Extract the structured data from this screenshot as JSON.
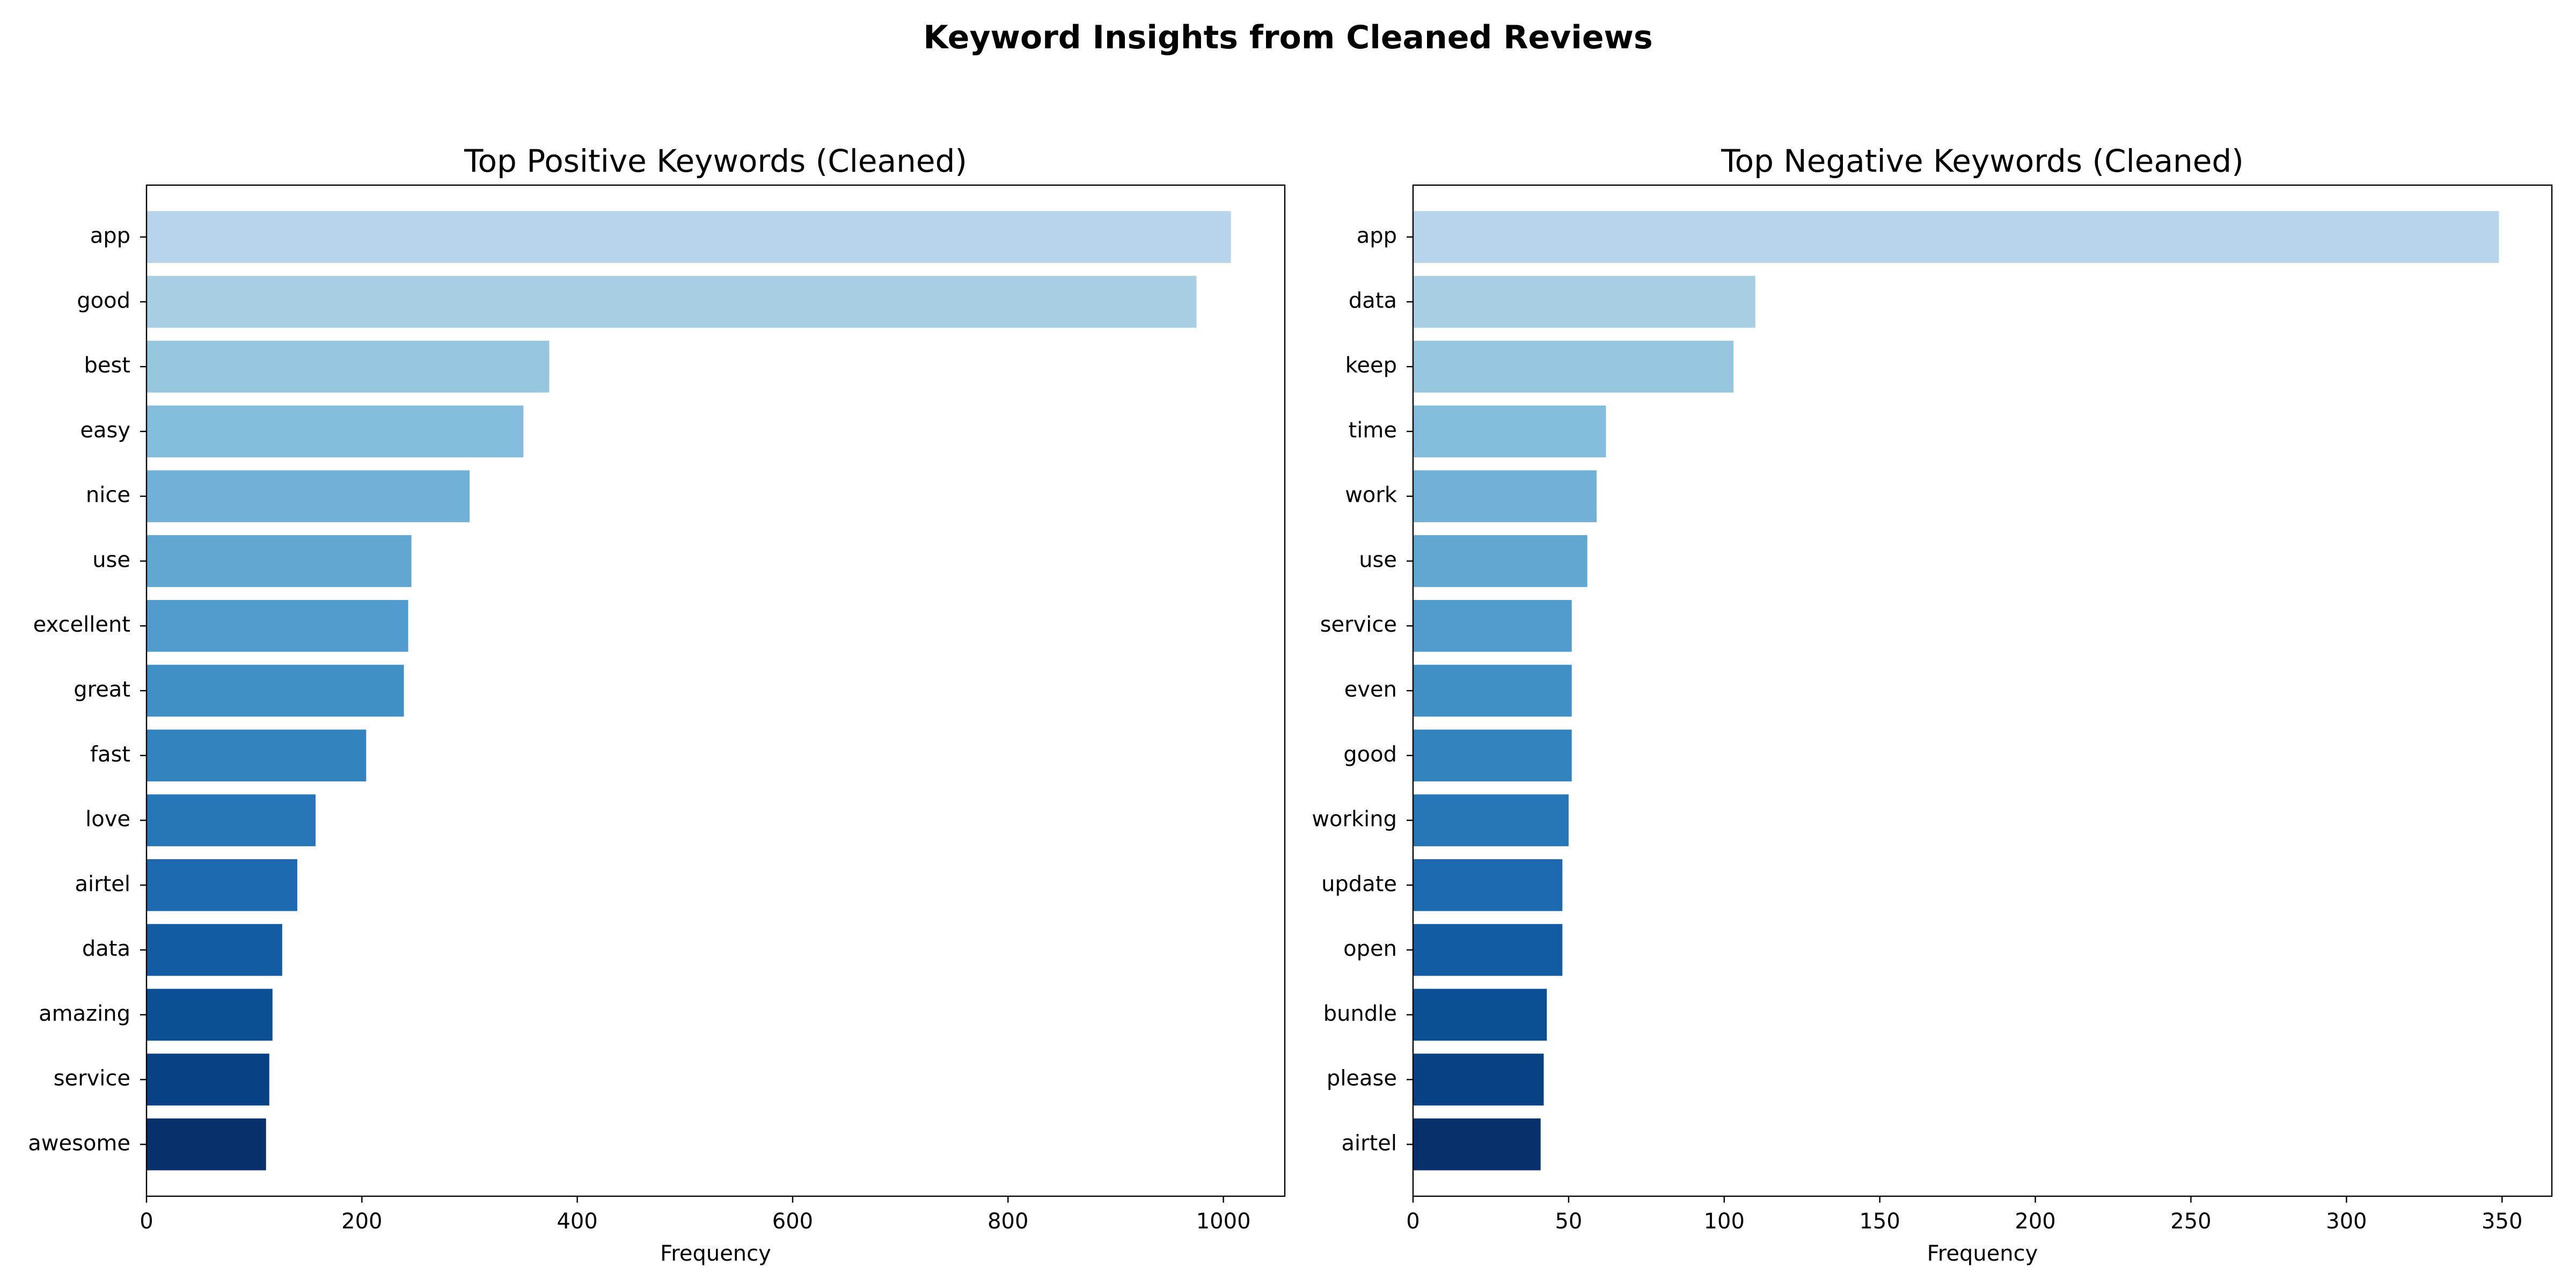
{
  "figure_title": "Keyword Insights from Cleaned Reviews",
  "chart_data": [
    {
      "type": "bar",
      "orientation": "horizontal",
      "title": "Top Positive Keywords (Cleaned)",
      "xlabel": "Frequency",
      "ylabel": "",
      "categories": [
        "app",
        "good",
        "best",
        "easy",
        "nice",
        "use",
        "excellent",
        "great",
        "fast",
        "love",
        "airtel",
        "data",
        "amazing",
        "service",
        "awesome"
      ],
      "values": [
        1007,
        975,
        374,
        350,
        300,
        246,
        243,
        239,
        204,
        157,
        140,
        126,
        117,
        114,
        111
      ],
      "xlim": [
        0,
        1057
      ],
      "xticks": [
        0,
        200,
        400,
        600,
        800,
        1000
      ],
      "grid": false,
      "colormap": "Blues",
      "colors": [
        "#b7d4ea",
        "#a8cee4",
        "#97c6df",
        "#84bcdb",
        "#71b1d7",
        "#60a7d2",
        "#519ccc",
        "#4090c5",
        "#3383be",
        "#2676b8",
        "#1c69af",
        "#135ca4",
        "#0b4f94",
        "#084285",
        "#08306b"
      ]
    },
    {
      "type": "bar",
      "orientation": "horizontal",
      "title": "Top Negative Keywords (Cleaned)",
      "xlabel": "Frequency",
      "ylabel": "",
      "categories": [
        "app",
        "data",
        "keep",
        "time",
        "work",
        "use",
        "service",
        "even",
        "good",
        "working",
        "update",
        "open",
        "bundle",
        "please",
        "airtel"
      ],
      "values": [
        349,
        110,
        103,
        62,
        59,
        56,
        51,
        51,
        51,
        50,
        48,
        48,
        43,
        42,
        41
      ],
      "xlim": [
        0,
        366
      ],
      "xticks": [
        0,
        50,
        100,
        150,
        200,
        250,
        300,
        350
      ],
      "grid": false,
      "colormap": "Blues",
      "colors": [
        "#b7d4ea",
        "#a8cee4",
        "#97c6df",
        "#84bcdb",
        "#71b1d7",
        "#60a7d2",
        "#519ccc",
        "#4090c5",
        "#3383be",
        "#2676b8",
        "#1c69af",
        "#135ca4",
        "#0b4f94",
        "#084285",
        "#08306b"
      ]
    }
  ]
}
